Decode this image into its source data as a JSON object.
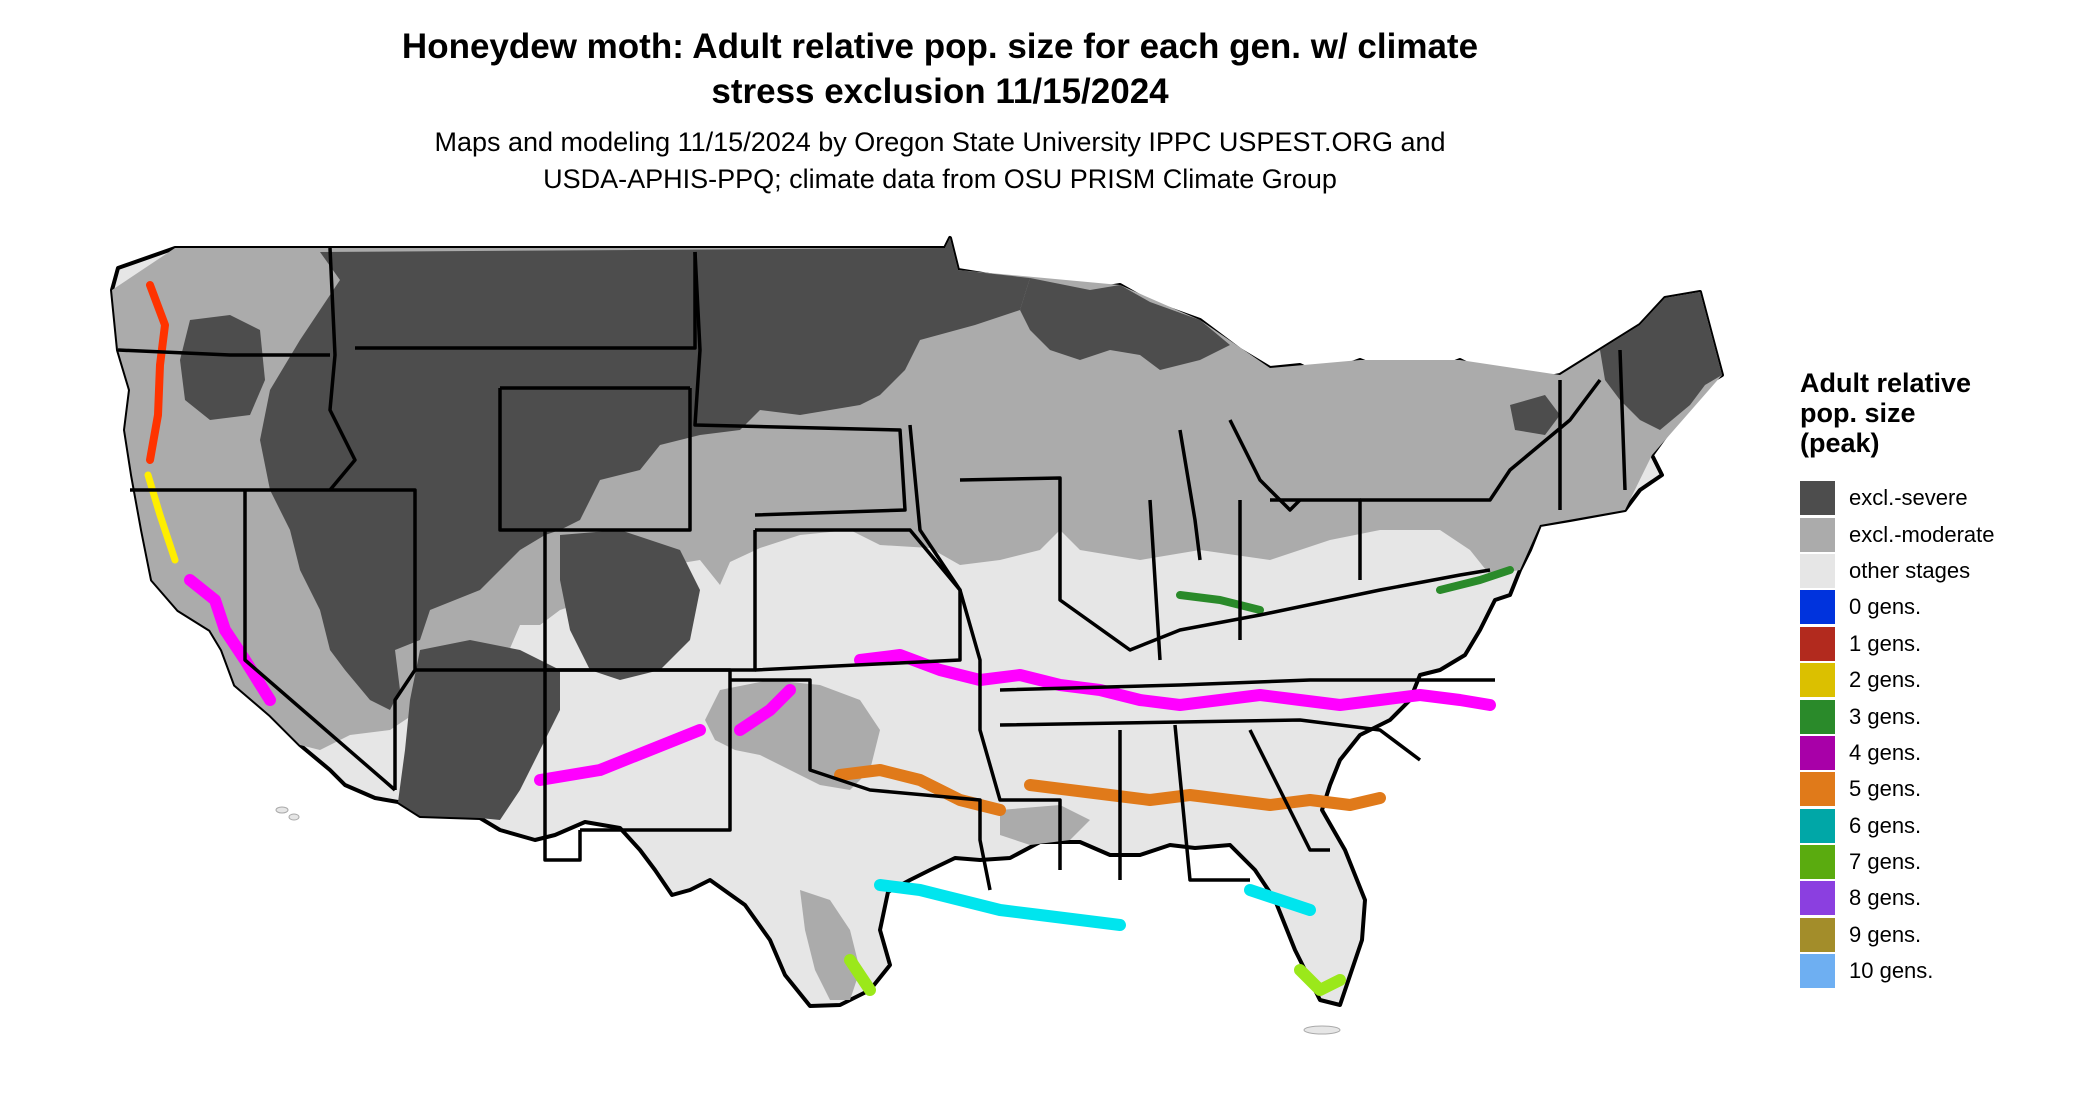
{
  "title": {
    "line1": "Honeydew moth: Adult relative pop. size for each gen. w/ climate",
    "line2": "stress exclusion 11/15/2024"
  },
  "subtitle": {
    "line1": "Maps and modeling 11/15/2024 by Oregon State University IPPC USPEST.ORG and",
    "line2": "USDA-APHIS-PPQ; climate data from OSU PRISM Climate Group"
  },
  "legend": {
    "title_lines": [
      "Adult relative",
      "pop. size",
      "(peak)"
    ],
    "items": [
      {
        "label": "excl.-severe",
        "color": "#4d4d4d"
      },
      {
        "label": "excl.-moderate",
        "color": "#ababab"
      },
      {
        "label": "other stages",
        "color": "#e6e6e6"
      },
      {
        "label": "0 gens.",
        "color": "#0033dd"
      },
      {
        "label": "1 gens.",
        "color": "#b22a1e"
      },
      {
        "label": "2 gens.",
        "color": "#dbc000"
      },
      {
        "label": "3 gens.",
        "color": "#2a8a2a"
      },
      {
        "label": "4 gens.",
        "color": "#a800a8"
      },
      {
        "label": "5 gens.",
        "color": "#e07a1a"
      },
      {
        "label": "6 gens.",
        "color": "#00a7a7"
      },
      {
        "label": "7 gens.",
        "color": "#5aab0f"
      },
      {
        "label": "8 gens.",
        "color": "#8b3fe0"
      },
      {
        "label": "9 gens.",
        "color": "#a38d2a"
      },
      {
        "label": "10 gens.",
        "color": "#6eaff2"
      }
    ]
  },
  "map_colors": {
    "background": "#ffffff",
    "state_border": "#000000",
    "hotspot_magenta": "#ff00ff",
    "hotspot_cyan": "#00e5ee",
    "hotspot_lime": "#9be81a",
    "hotspot_red": "#ff3300",
    "hotspot_yellow": "#ffee00"
  }
}
